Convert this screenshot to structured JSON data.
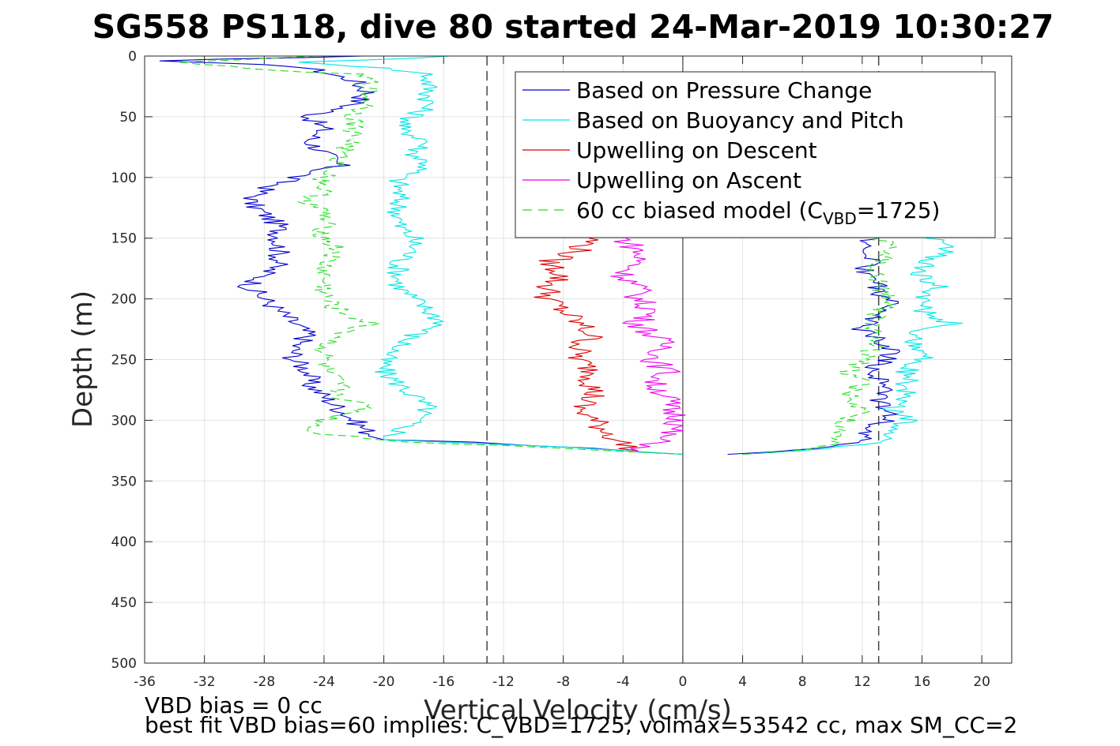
{
  "chart_data": {
    "type": "line",
    "title": "SG558 PS118, dive 80 started 24-Mar-2019 10:30:27",
    "xlabel": "Vertical Velocity (cm/s)",
    "ylabel": "Depth (m)",
    "xlim": [
      -36,
      22
    ],
    "ylim": [
      0,
      500
    ],
    "y_reversed": true,
    "grid": true,
    "xticks": [
      -36,
      -32,
      -28,
      -24,
      -20,
      -16,
      -12,
      -8,
      -4,
      0,
      4,
      8,
      12,
      16,
      20
    ],
    "yticks": [
      0,
      50,
      100,
      150,
      200,
      250,
      300,
      350,
      400,
      450,
      500
    ],
    "legend_position": "top-right",
    "reference_lines": {
      "dashed_x": [
        -13.1,
        13.1
      ],
      "solid_x": [
        0
      ]
    },
    "legend": [
      {
        "label": "Based on Pressure Change",
        "color": "#0000cc",
        "style": "solid"
      },
      {
        "label": "Based on Buoyancy and Pitch",
        "color": "#00e5e5",
        "style": "solid"
      },
      {
        "label": "Upwelling on Descent",
        "color": "#dd0000",
        "style": "solid"
      },
      {
        "label": "Upwelling on Ascent",
        "color": "#ee00ee",
        "style": "solid"
      },
      {
        "label": "60 cc biased model (C",
        "label_sub": "VBD",
        "label_suffix": "=1725)",
        "color": "#22dd22",
        "style": "dashed"
      }
    ],
    "series": [
      {
        "name": "Based on Pressure Change",
        "color": "#0000cc",
        "descent": [
          [
            0,
            -22
          ],
          [
            4,
            -35
          ],
          [
            7,
            -28
          ],
          [
            10,
            -25
          ],
          [
            20,
            -22
          ],
          [
            30,
            -21
          ],
          [
            40,
            -22
          ],
          [
            50,
            -25
          ],
          [
            60,
            -24
          ],
          [
            70,
            -25
          ],
          [
            80,
            -24
          ],
          [
            90,
            -23
          ],
          [
            100,
            -26
          ],
          [
            110,
            -28
          ],
          [
            120,
            -29
          ],
          [
            130,
            -28
          ],
          [
            140,
            -27
          ],
          [
            150,
            -27
          ],
          [
            160,
            -27
          ],
          [
            170,
            -27
          ],
          [
            180,
            -28
          ],
          [
            190,
            -29
          ],
          [
            200,
            -28
          ],
          [
            210,
            -27
          ],
          [
            220,
            -26
          ],
          [
            230,
            -25
          ],
          [
            240,
            -26
          ],
          [
            250,
            -26
          ],
          [
            260,
            -25
          ],
          [
            270,
            -25
          ],
          [
            280,
            -24
          ],
          [
            290,
            -23
          ],
          [
            300,
            -22
          ],
          [
            310,
            -21
          ],
          [
            316,
            -20
          ],
          [
            318,
            -14
          ],
          [
            321,
            -10
          ],
          [
            323,
            -6
          ],
          [
            326,
            -3
          ],
          [
            328,
            0
          ]
        ],
        "ascent": [
          [
            328,
            3
          ],
          [
            326,
            6
          ],
          [
            323,
            9
          ],
          [
            320,
            11
          ],
          [
            315,
            12
          ],
          [
            305,
            13
          ],
          [
            295,
            14
          ],
          [
            285,
            13
          ],
          [
            275,
            14
          ],
          [
            265,
            13
          ],
          [
            255,
            13
          ],
          [
            245,
            14
          ],
          [
            235,
            13
          ],
          [
            225,
            12
          ],
          [
            215,
            13
          ],
          [
            205,
            14
          ],
          [
            195,
            13
          ],
          [
            185,
            13
          ],
          [
            175,
            12
          ],
          [
            165,
            13
          ],
          [
            155,
            12
          ],
          [
            145,
            13
          ],
          [
            140,
            13.5
          ]
        ]
      },
      {
        "name": "Based on Buoyancy and Pitch",
        "color": "#00e5e5",
        "descent": [
          [
            0,
            -15
          ],
          [
            5,
            -25
          ],
          [
            10,
            -20
          ],
          [
            15,
            -17
          ],
          [
            20,
            -17
          ],
          [
            30,
            -17
          ],
          [
            40,
            -17
          ],
          [
            50,
            -18
          ],
          [
            60,
            -19
          ],
          [
            70,
            -17
          ],
          [
            80,
            -18
          ],
          [
            90,
            -17
          ],
          [
            100,
            -19
          ],
          [
            110,
            -19
          ],
          [
            120,
            -19
          ],
          [
            130,
            -19
          ],
          [
            140,
            -19
          ],
          [
            150,
            -18
          ],
          [
            160,
            -18
          ],
          [
            170,
            -19
          ],
          [
            180,
            -19
          ],
          [
            190,
            -19
          ],
          [
            200,
            -18
          ],
          [
            210,
            -17
          ],
          [
            220,
            -16
          ],
          [
            230,
            -18
          ],
          [
            240,
            -19
          ],
          [
            250,
            -20
          ],
          [
            260,
            -20
          ],
          [
            270,
            -19
          ],
          [
            280,
            -18
          ],
          [
            290,
            -17
          ],
          [
            300,
            -18
          ],
          [
            310,
            -19
          ],
          [
            316,
            -20
          ],
          [
            319,
            -14
          ],
          [
            322,
            -8
          ],
          [
            325,
            -4
          ],
          [
            328,
            0
          ]
        ],
        "ascent": [
          [
            328,
            4
          ],
          [
            325,
            8
          ],
          [
            320,
            12
          ],
          [
            315,
            14
          ],
          [
            310,
            14
          ],
          [
            300,
            15
          ],
          [
            290,
            14
          ],
          [
            280,
            15
          ],
          [
            270,
            15
          ],
          [
            260,
            15
          ],
          [
            250,
            16
          ],
          [
            240,
            16
          ],
          [
            230,
            15
          ],
          [
            220,
            18
          ],
          [
            210,
            16
          ],
          [
            200,
            16
          ],
          [
            190,
            17
          ],
          [
            180,
            16
          ],
          [
            170,
            16
          ],
          [
            160,
            18
          ],
          [
            150,
            17
          ],
          [
            140,
            16
          ]
        ]
      },
      {
        "name": "Upwelling on Descent",
        "color": "#dd0000",
        "descent": [
          [
            150,
            -6
          ],
          [
            160,
            -7
          ],
          [
            170,
            -9
          ],
          [
            180,
            -8
          ],
          [
            190,
            -9
          ],
          [
            200,
            -9
          ],
          [
            210,
            -8
          ],
          [
            220,
            -7
          ],
          [
            230,
            -6
          ],
          [
            240,
            -7
          ],
          [
            250,
            -7
          ],
          [
            260,
            -6
          ],
          [
            270,
            -6
          ],
          [
            280,
            -6
          ],
          [
            290,
            -7
          ],
          [
            300,
            -6
          ],
          [
            310,
            -5
          ],
          [
            320,
            -4
          ],
          [
            325,
            -3
          ]
        ]
      },
      {
        "name": "Upwelling on Ascent",
        "color": "#ee00ee",
        "descent": [
          [
            150,
            -4
          ],
          [
            160,
            -3
          ],
          [
            170,
            -3
          ],
          [
            180,
            -4
          ],
          [
            190,
            -3
          ],
          [
            200,
            -3
          ],
          [
            210,
            -2
          ],
          [
            220,
            -3
          ],
          [
            230,
            -2
          ],
          [
            240,
            -1
          ],
          [
            250,
            -2
          ],
          [
            260,
            -1
          ],
          [
            270,
            -2
          ],
          [
            280,
            -1
          ],
          [
            290,
            -1
          ],
          [
            300,
            0
          ],
          [
            310,
            -1
          ],
          [
            320,
            -2
          ],
          [
            325,
            -3
          ]
        ]
      },
      {
        "name": "60 cc biased model (CVBD=1725)",
        "color": "#22dd22",
        "dashed": true,
        "descent": [
          [
            0,
            -25
          ],
          [
            5,
            -33
          ],
          [
            10,
            -30
          ],
          [
            15,
            -22
          ],
          [
            20,
            -21
          ],
          [
            30,
            -21
          ],
          [
            40,
            -21
          ],
          [
            50,
            -22
          ],
          [
            60,
            -22
          ],
          [
            70,
            -22
          ],
          [
            80,
            -23
          ],
          [
            90,
            -23
          ],
          [
            100,
            -24
          ],
          [
            110,
            -24
          ],
          [
            120,
            -25
          ],
          [
            130,
            -24
          ],
          [
            140,
            -24
          ],
          [
            150,
            -24
          ],
          [
            160,
            -23
          ],
          [
            170,
            -24
          ],
          [
            180,
            -24
          ],
          [
            190,
            -24
          ],
          [
            200,
            -24
          ],
          [
            210,
            -23
          ],
          [
            220,
            -21
          ],
          [
            230,
            -23
          ],
          [
            240,
            -24
          ],
          [
            250,
            -24
          ],
          [
            260,
            -24
          ],
          [
            270,
            -23
          ],
          [
            280,
            -23
          ],
          [
            290,
            -21
          ],
          [
            300,
            -24
          ],
          [
            310,
            -25
          ],
          [
            318,
            -18
          ],
          [
            322,
            -10
          ],
          [
            325,
            -5
          ],
          [
            328,
            0
          ]
        ],
        "ascent": [
          [
            328,
            4
          ],
          [
            325,
            8
          ],
          [
            320,
            10
          ],
          [
            310,
            10
          ],
          [
            300,
            11
          ],
          [
            290,
            12
          ],
          [
            280,
            11
          ],
          [
            270,
            12
          ],
          [
            260,
            11
          ],
          [
            250,
            12
          ],
          [
            240,
            13
          ],
          [
            230,
            13
          ],
          [
            220,
            13
          ],
          [
            210,
            13
          ],
          [
            200,
            14
          ],
          [
            190,
            13
          ],
          [
            180,
            13
          ],
          [
            170,
            13
          ],
          [
            160,
            14
          ],
          [
            150,
            13
          ],
          [
            140,
            13
          ]
        ]
      }
    ],
    "annotations": [
      "VBD bias = 0 cc",
      "best fit VBD bias=60 implies: C_VBD=1725, volmax=53542 cc, max SM_CC=2"
    ]
  }
}
